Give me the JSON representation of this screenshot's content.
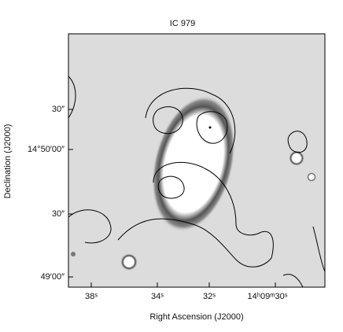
{
  "figure": {
    "title": "IC 979",
    "x_axis_label": "Right Ascension (J2000)",
    "y_axis_label": "Declination (J2000)",
    "x_tick_labels": [
      "38ˢ",
      "34ˢ",
      "32ˢ",
      "14ʰ09ᵐ30ˢ"
    ],
    "y_tick_labels": [
      "30″",
      "14°50′00″",
      "30″",
      "49′00″"
    ]
  }
}
